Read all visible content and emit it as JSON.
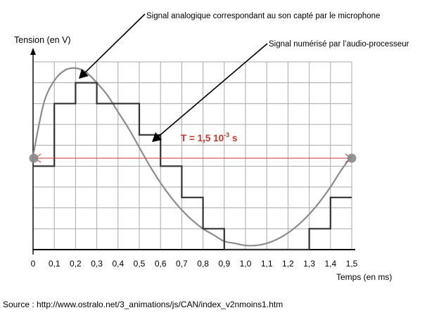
{
  "chart_data": {
    "type": "line",
    "ylabel": "Tension (en V)",
    "xlabel": "Temps (en ms)",
    "x_ticks": [
      "0",
      "0,1",
      "0,2",
      "0,3",
      "0,4",
      "0,5",
      "0,6",
      "0,7",
      "0,8",
      "0,9",
      "1,0",
      "1,1",
      "1,2",
      "1,3",
      "1,4",
      "1,5"
    ],
    "xlim": [
      0,
      1.5
    ],
    "ylim": [
      -4.5,
      4.5
    ],
    "grid": true,
    "series": [
      {
        "name": "Signal analogique correspondant au son capté par le microphone",
        "kind": "smooth",
        "color": "#8c8c8c",
        "x": [
          0,
          0.05,
          0.1,
          0.15,
          0.2,
          0.25,
          0.3,
          0.35,
          0.4,
          0.45,
          0.5,
          0.55,
          0.6,
          0.65,
          0.7,
          0.75,
          0.8,
          0.85,
          0.9,
          0.95,
          1.0,
          1.05,
          1.1,
          1.15,
          1.2,
          1.25,
          1.3,
          1.35,
          1.4,
          1.45,
          1.5
        ],
        "y": [
          0,
          2.5,
          3.6,
          4.1,
          4.2,
          4.0,
          3.5,
          2.9,
          2.1,
          1.3,
          0.4,
          -0.5,
          -1.3,
          -2.0,
          -2.6,
          -3.1,
          -3.5,
          -3.8,
          -4.1,
          -4.2,
          -4.3,
          -4.3,
          -4.2,
          -4.0,
          -3.7,
          -3.3,
          -2.8,
          -2.2,
          -1.5,
          -0.7,
          0
        ]
      },
      {
        "name": "Signal numérisé par l’audio-processeur",
        "kind": "step",
        "color": "#333333",
        "steps": [
          {
            "x0": 0.0,
            "x1": 0.1,
            "y": -0.5
          },
          {
            "x0": 0.1,
            "x1": 0.2,
            "y": 2.5
          },
          {
            "x0": 0.2,
            "x1": 0.3,
            "y": 3.5
          },
          {
            "x0": 0.3,
            "x1": 0.5,
            "y": 2.5
          },
          {
            "x0": 0.5,
            "x1": 0.6,
            "y": 1.0
          },
          {
            "x0": 0.6,
            "x1": 0.7,
            "y": -0.5
          },
          {
            "x0": 0.7,
            "x1": 0.8,
            "y": -2.0
          },
          {
            "x0": 0.8,
            "x1": 0.9,
            "y": -3.5
          },
          {
            "x0": 0.9,
            "x1": 1.3,
            "y": -4.5
          },
          {
            "x0": 1.3,
            "x1": 1.4,
            "y": -3.5
          },
          {
            "x0": 1.4,
            "x1": 1.5,
            "y": -2.0
          }
        ]
      }
    ],
    "annotations": {
      "analog_label": "Signal analogique correspondant au son capté par le microphone",
      "digital_label": "Signal numérisé par l’audio-processeur",
      "period_label_main": "T = 1,5 10",
      "period_label_exp": "-3",
      "period_label_unit": " s"
    },
    "colors": {
      "grid": "#a9a9a9",
      "axis": "#000000",
      "period": "#cc3333",
      "marker": "#888888",
      "period_text": "#c0392b"
    }
  },
  "source": "Source : http://www.ostralo.net/3_animations/js/CAN/index_v2nmoins1.htm"
}
